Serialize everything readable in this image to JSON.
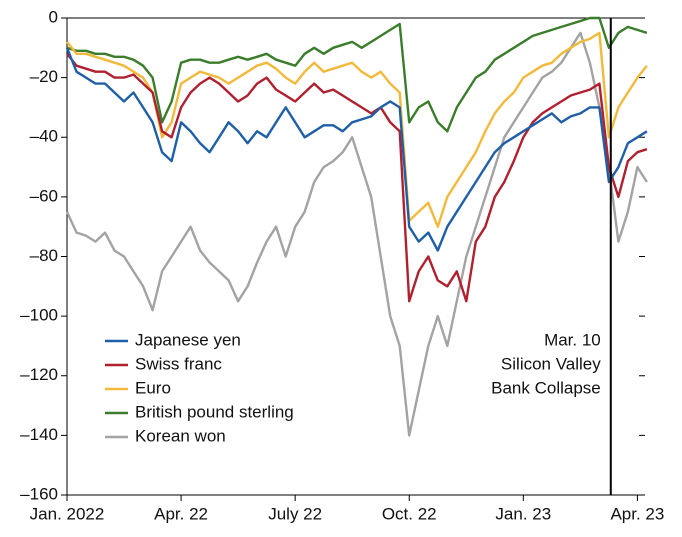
{
  "chart_data": {
    "type": "line",
    "x": [
      0,
      0.25,
      0.5,
      0.75,
      1,
      1.25,
      1.5,
      1.75,
      2,
      2.25,
      2.5,
      2.75,
      3,
      3.25,
      3.5,
      3.75,
      4,
      4.25,
      4.5,
      4.75,
      5,
      5.25,
      5.5,
      5.75,
      6,
      6.25,
      6.5,
      6.75,
      7,
      7.25,
      7.5,
      7.75,
      8,
      8.25,
      8.5,
      8.75,
      9,
      9.25,
      9.5,
      9.75,
      10,
      10.25,
      10.5,
      10.75,
      11,
      11.25,
      11.5,
      11.75,
      12,
      12.25,
      12.5,
      12.75,
      13,
      13.25,
      13.5,
      13.75,
      14,
      14.25,
      14.5,
      14.75,
      15,
      15.25
    ],
    "series": [
      {
        "name": "Japanese yen",
        "color": "#1f5fa8",
        "values": [
          -10,
          -18,
          -20,
          -22,
          -22,
          -25,
          -28,
          -25,
          -30,
          -35,
          -45,
          -48,
          -35,
          -38,
          -42,
          -45,
          -40,
          -35,
          -38,
          -42,
          -38,
          -40,
          -35,
          -30,
          -35,
          -40,
          -38,
          -36,
          -36,
          -38,
          -35,
          -34,
          -33,
          -30,
          -28,
          -30,
          -70,
          -75,
          -72,
          -78,
          -70,
          -65,
          -60,
          -55,
          -50,
          -45,
          -42,
          -40,
          -38,
          -36,
          -34,
          -32,
          -35,
          -33,
          -32,
          -30,
          -30,
          -55,
          -50,
          -42,
          -40,
          -38
        ]
      },
      {
        "name": "Swiss franc",
        "color": "#b0202e",
        "values": [
          -12,
          -16,
          -17,
          -18,
          -18,
          -20,
          -20,
          -19,
          -22,
          -25,
          -38,
          -40,
          -30,
          -25,
          -22,
          -20,
          -22,
          -25,
          -28,
          -26,
          -22,
          -20,
          -24,
          -26,
          -28,
          -25,
          -22,
          -25,
          -24,
          -26,
          -28,
          -30,
          -32,
          -30,
          -35,
          -38,
          -95,
          -85,
          -80,
          -88,
          -90,
          -85,
          -95,
          -75,
          -70,
          -60,
          -55,
          -48,
          -40,
          -35,
          -32,
          -30,
          -28,
          -26,
          -25,
          -24,
          -22,
          -50,
          -60,
          -48,
          -45,
          -44
        ]
      },
      {
        "name": "Euro",
        "color": "#f2b93b",
        "values": [
          -8,
          -12,
          -12,
          -13,
          -14,
          -15,
          -16,
          -18,
          -20,
          -25,
          -40,
          -35,
          -22,
          -20,
          -18,
          -19,
          -20,
          -22,
          -20,
          -18,
          -16,
          -15,
          -17,
          -20,
          -22,
          -18,
          -15,
          -18,
          -17,
          -16,
          -15,
          -18,
          -20,
          -18,
          -22,
          -25,
          -68,
          -65,
          -62,
          -70,
          -60,
          -55,
          -50,
          -45,
          -38,
          -32,
          -28,
          -25,
          -20,
          -18,
          -16,
          -15,
          -12,
          -10,
          -8,
          -7,
          -5,
          -40,
          -30,
          -25,
          -20,
          -16
        ]
      },
      {
        "name": "British pound sterling",
        "color": "#3b7d2b",
        "values": [
          -10,
          -11,
          -11,
          -12,
          -12,
          -13,
          -13,
          -14,
          -16,
          -20,
          -35,
          -28,
          -15,
          -14,
          -14,
          -15,
          -15,
          -14,
          -13,
          -14,
          -13,
          -12,
          -14,
          -15,
          -16,
          -12,
          -10,
          -12,
          -10,
          -9,
          -8,
          -10,
          -8,
          -6,
          -4,
          -2,
          -35,
          -30,
          -28,
          -35,
          -38,
          -30,
          -25,
          -20,
          -18,
          -14,
          -12,
          -10,
          -8,
          -6,
          -5,
          -4,
          -3,
          -2,
          -1,
          0,
          0,
          -10,
          -5,
          -3,
          -4,
          -5
        ]
      },
      {
        "name": "Korean won",
        "color": "#a3a3a3",
        "values": [
          -65,
          -72,
          -73,
          -75,
          -72,
          -78,
          -80,
          -85,
          -90,
          -98,
          -85,
          -80,
          -75,
          -70,
          -78,
          -82,
          -85,
          -88,
          -95,
          -90,
          -82,
          -75,
          -70,
          -80,
          -70,
          -65,
          -55,
          -50,
          -48,
          -45,
          -40,
          -50,
          -60,
          -80,
          -100,
          -110,
          -140,
          -125,
          -110,
          -100,
          -110,
          -95,
          -80,
          -70,
          -60,
          -50,
          -40,
          -35,
          -30,
          -25,
          -20,
          -18,
          -15,
          -10,
          -5,
          -15,
          -30,
          -50,
          -75,
          -65,
          -50,
          -55
        ]
      }
    ],
    "xlim": [
      0,
      15.2
    ],
    "xticks": [
      {
        "value": 0,
        "label": "Jan. 2022"
      },
      {
        "value": 3,
        "label": "Apr. 22"
      },
      {
        "value": 6,
        "label": "July 22"
      },
      {
        "value": 9,
        "label": "Oct. 22"
      },
      {
        "value": 12,
        "label": "Jan. 23"
      },
      {
        "value": 15,
        "label": "Apr. 23"
      }
    ],
    "ylim": [
      -160,
      0
    ],
    "yticks": [
      {
        "value": -160,
        "label": "–160"
      },
      {
        "value": -140,
        "label": "–140"
      },
      {
        "value": -120,
        "label": "–120"
      },
      {
        "value": -100,
        "label": "–100"
      },
      {
        "value": -80,
        "label": "–80"
      },
      {
        "value": -60,
        "label": "–60"
      },
      {
        "value": -40,
        "label": "–40"
      },
      {
        "value": -20,
        "label": "–20"
      },
      0
    ],
    "legend": "lower-left",
    "annotation": {
      "x": 14.3,
      "lines": [
        "Mar. 10",
        "Silicon Valley",
        "Bank Collapse"
      ]
    }
  }
}
